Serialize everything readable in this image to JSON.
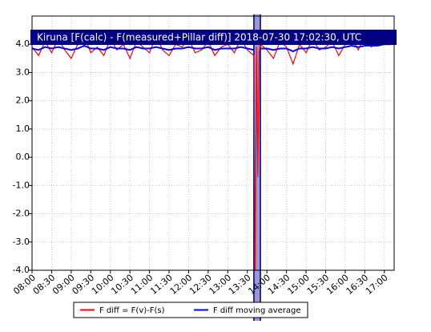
{
  "chart_data": {
    "type": "line",
    "title": "Kiruna [F(calc) - F(measured+Pillar diff)] 2018-07-30 17:02:30, UTC",
    "x": [
      480,
      490,
      500,
      510,
      520,
      530,
      540,
      550,
      560,
      570,
      580,
      590,
      600,
      610,
      620,
      630,
      640,
      650,
      660,
      670,
      680,
      690,
      700,
      710,
      720,
      730,
      740,
      750,
      760,
      770,
      780,
      790,
      800,
      810,
      820,
      822,
      824,
      826,
      828,
      830,
      840,
      850,
      860,
      870,
      880,
      890,
      900,
      910,
      920,
      930,
      940,
      950,
      960,
      970,
      980,
      990,
      1000,
      1010,
      1020,
      1030
    ],
    "series": [
      {
        "name": "F diff = F(v)-F(s)",
        "color": "#ff0000",
        "values": [
          3.9,
          3.6,
          4.1,
          3.7,
          4.2,
          3.8,
          3.5,
          4.0,
          4.3,
          3.7,
          3.9,
          3.6,
          4.2,
          3.8,
          4.0,
          3.5,
          4.1,
          3.9,
          3.7,
          4.3,
          3.8,
          3.6,
          4.0,
          3.9,
          4.2,
          3.7,
          3.8,
          4.1,
          3.6,
          3.9,
          4.0,
          3.7,
          4.2,
          3.8,
          3.6,
          -4.0,
          3.9,
          -0.7,
          3.7,
          4.0,
          3.8,
          3.5,
          4.1,
          3.9,
          3.3,
          4.0,
          3.7,
          4.2,
          3.8,
          3.9,
          4.1,
          3.6,
          4.0,
          4.2,
          3.8,
          4.3,
          3.9,
          4.1,
          4.4,
          4.0
        ]
      },
      {
        "name": "F diff moving average",
        "color": "#0000ff",
        "values": [
          3.85,
          3.8,
          3.9,
          3.85,
          3.9,
          3.85,
          3.8,
          3.85,
          3.95,
          3.85,
          3.85,
          3.8,
          3.9,
          3.85,
          3.85,
          3.8,
          3.9,
          3.85,
          3.85,
          3.9,
          3.85,
          3.8,
          3.85,
          3.85,
          3.9,
          3.85,
          3.85,
          3.9,
          3.8,
          3.85,
          3.85,
          3.85,
          3.9,
          3.85,
          3.8,
          null,
          null,
          null,
          null,
          3.85,
          3.85,
          3.8,
          3.85,
          3.85,
          3.75,
          3.85,
          3.85,
          3.9,
          3.85,
          3.85,
          3.9,
          3.85,
          3.9,
          3.95,
          3.9,
          3.95,
          3.95,
          3.95,
          4.0,
          4.0
        ]
      }
    ],
    "highlight": {
      "from": 820,
      "to": 830,
      "color": "#8080d0"
    },
    "xlim": [
      480,
      1035
    ],
    "xticks": [
      {
        "value": 480,
        "label": "08:00"
      },
      {
        "value": 510,
        "label": "08:30"
      },
      {
        "value": 540,
        "label": "09:00"
      },
      {
        "value": 570,
        "label": "09:30"
      },
      {
        "value": 600,
        "label": "10:00"
      },
      {
        "value": 630,
        "label": "10:30"
      },
      {
        "value": 660,
        "label": "11:00"
      },
      {
        "value": 690,
        "label": "11:30"
      },
      {
        "value": 720,
        "label": "12:00"
      },
      {
        "value": 750,
        "label": "12:30"
      },
      {
        "value": 780,
        "label": "13:00"
      },
      {
        "value": 810,
        "label": "13:30"
      },
      {
        "value": 840,
        "label": "14:00"
      },
      {
        "value": 870,
        "label": "14:30"
      },
      {
        "value": 900,
        "label": "15:00"
      },
      {
        "value": 930,
        "label": "15:30"
      },
      {
        "value": 960,
        "label": "16:00"
      },
      {
        "value": 990,
        "label": "16:30"
      },
      {
        "value": 1020,
        "label": "17:00"
      }
    ],
    "ylim": [
      -4,
      5
    ],
    "yticks": [
      {
        "value": -4,
        "label": "-4.0"
      },
      {
        "value": -3,
        "label": "-3.0"
      },
      {
        "value": -2,
        "label": "-2.0"
      },
      {
        "value": -1,
        "label": "-1.0"
      },
      {
        "value": 0,
        "label": "0.0"
      },
      {
        "value": 1,
        "label": "1.0"
      },
      {
        "value": 2,
        "label": "2.0"
      },
      {
        "value": 3,
        "label": "3.0"
      },
      {
        "value": 4,
        "label": "4.0"
      }
    ],
    "grid": true
  }
}
